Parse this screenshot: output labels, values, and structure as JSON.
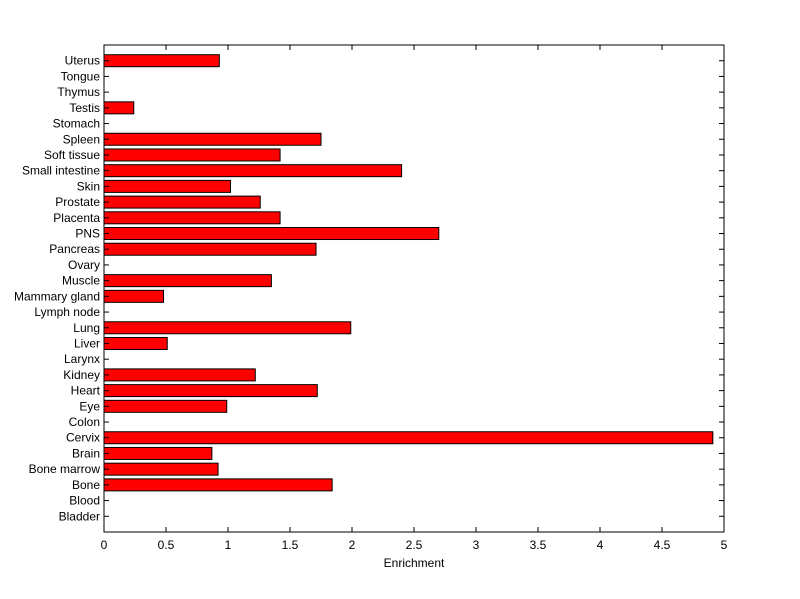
{
  "chart_data": {
    "type": "bar",
    "orientation": "horizontal",
    "title": "",
    "xlabel": "Enrichment",
    "ylabel": "",
    "xlim": [
      0,
      5
    ],
    "xticks": [
      0,
      0.5,
      1,
      1.5,
      2,
      2.5,
      3,
      3.5,
      4,
      4.5,
      5
    ],
    "xtick_labels": [
      "0",
      "0.5",
      "1",
      "1.5",
      "2",
      "2.5",
      "3",
      "3.5",
      "4",
      "4.5",
      "5"
    ],
    "grid": false,
    "legend": "none",
    "bar_color": "#ff0000",
    "bar_edge_color": "#000000",
    "categories": [
      "Bladder",
      "Blood",
      "Bone",
      "Bone marrow",
      "Brain",
      "Cervix",
      "Colon",
      "Eye",
      "Heart",
      "Kidney",
      "Larynx",
      "Liver",
      "Lung",
      "Lymph node",
      "Mammary gland",
      "Muscle",
      "Ovary",
      "Pancreas",
      "PNS",
      "Placenta",
      "Prostate",
      "Skin",
      "Small intestine",
      "Soft tissue",
      "Spleen",
      "Stomach",
      "Testis",
      "Thymus",
      "Tongue",
      "Uterus"
    ],
    "values": [
      0,
      0,
      1.84,
      0.92,
      0.87,
      4.91,
      0,
      0.99,
      1.72,
      1.22,
      0,
      0.51,
      1.99,
      0,
      0.48,
      1.35,
      0,
      1.71,
      2.7,
      1.42,
      1.26,
      1.02,
      2.4,
      1.42,
      1.75,
      0,
      0.24,
      0,
      0,
      0.93
    ]
  }
}
